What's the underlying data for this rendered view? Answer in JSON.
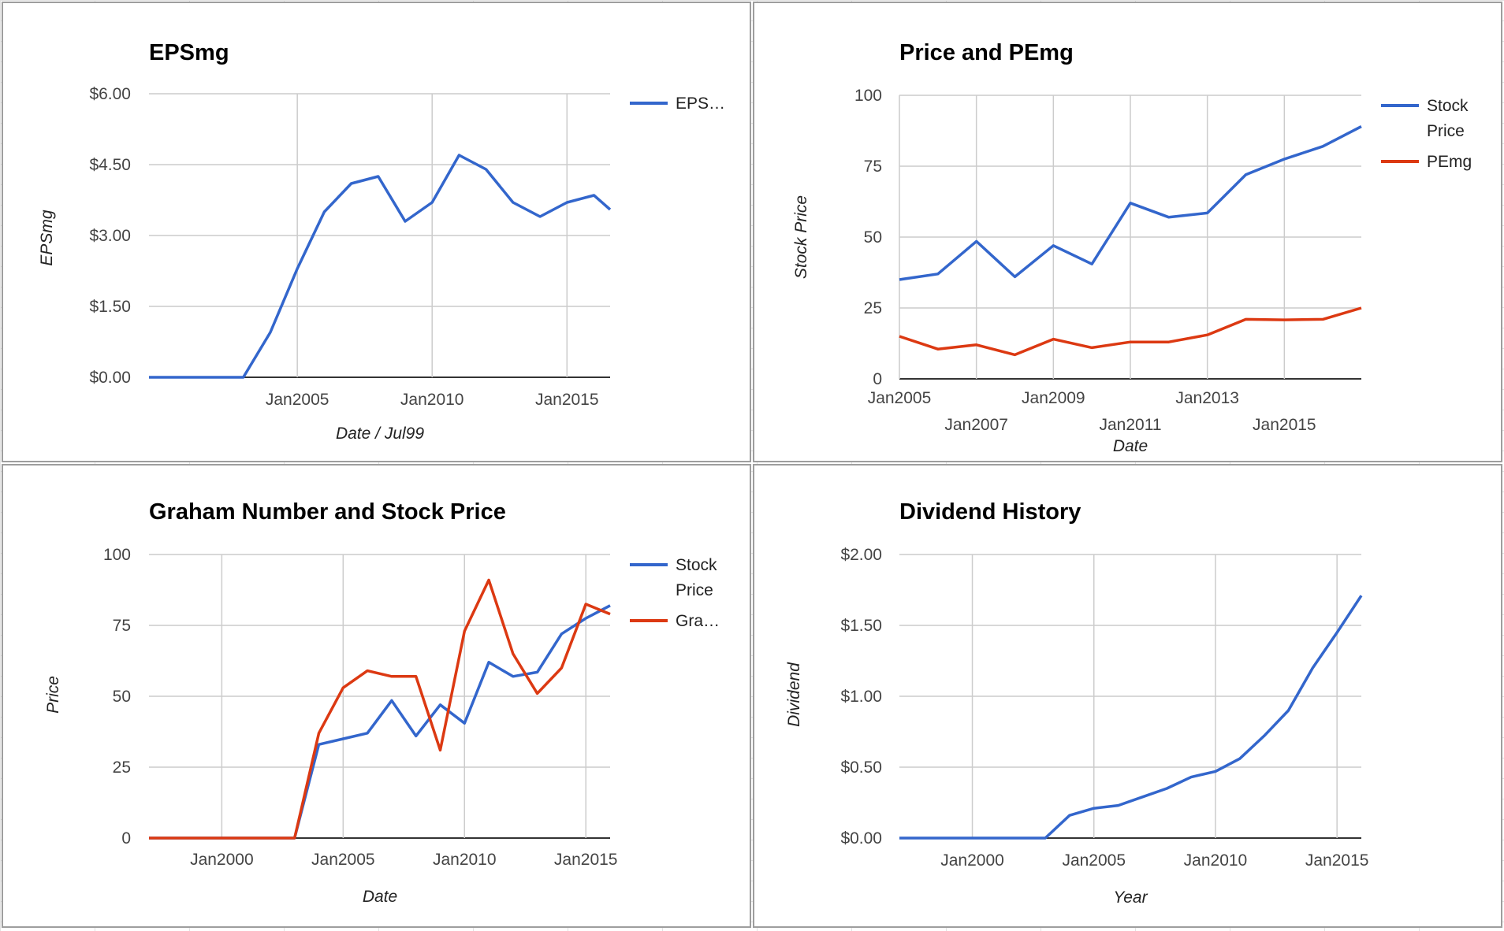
{
  "charts": [
    {
      "title": "EPSmg",
      "chart_data": {
        "type": "line",
        "title": "EPSmg",
        "xlabel": "Date / Jul99",
        "ylabel": "EPSmg",
        "xlim": [
          1999.5,
          2016.6
        ],
        "ylim": [
          0,
          6
        ],
        "yticks": [
          0,
          1.5,
          3,
          4.5,
          6
        ],
        "ytick_labels": [
          "$0.00",
          "$1.50",
          "$3.00",
          "$4.50",
          "$6.00"
        ],
        "xticks": [
          2005,
          2010,
          2015
        ],
        "xtick_labels": [
          "Jan2005",
          "Jan2010",
          "Jan2015"
        ],
        "x": [
          1999.5,
          2001.0,
          2002.0,
          2003.0,
          2004.0,
          2005.0,
          2006.0,
          2007.0,
          2008.0,
          2009.0,
          2010.0,
          2011.0,
          2012.0,
          2013.0,
          2014.0,
          2015.0,
          2016.0,
          2016.6
        ],
        "series": [
          {
            "name": "EPSmg",
            "color": "#3366cc",
            "values": [
              0,
              0,
              0,
              0,
              0.95,
              2.3,
              3.5,
              4.1,
              4.25,
              3.3,
              3.7,
              4.7,
              4.4,
              3.7,
              3.4,
              3.7,
              3.85,
              3.55
            ]
          }
        ],
        "grid": true,
        "legend": "right"
      },
      "legend_labels": [
        "EPS…"
      ]
    },
    {
      "title": "Price and PEmg",
      "chart_data": {
        "type": "line",
        "title": "Price and PEmg",
        "xlabel": "Date",
        "ylabel": "Stock Price",
        "xlim": [
          2005.0,
          2017.0
        ],
        "ylim": [
          0,
          100
        ],
        "yticks": [
          0,
          25,
          50,
          75,
          100
        ],
        "ytick_labels": [
          "0",
          "25",
          "50",
          "75",
          "100"
        ],
        "xticks": [
          2005,
          2007,
          2009,
          2011,
          2013,
          2015
        ],
        "xtick_labels": [
          "Jan2005",
          "Jan2007",
          "Jan2009",
          "Jan2011",
          "Jan2013",
          "Jan2015"
        ],
        "x": [
          2005.0,
          2006.0,
          2007.0,
          2008.0,
          2009.0,
          2010.0,
          2011.0,
          2012.0,
          2013.0,
          2014.0,
          2015.0,
          2016.0,
          2017.0
        ],
        "series": [
          {
            "name": "Stock Price",
            "color": "#3366cc",
            "values": [
              35,
              37,
              48.5,
              36,
              47,
              40.5,
              62,
              57,
              58.5,
              72,
              77.5,
              82,
              89
            ]
          },
          {
            "name": "PEmg",
            "color": "#dc3912",
            "values": [
              15,
              10.5,
              12,
              8.5,
              14,
              11,
              13,
              13,
              15.5,
              21,
              20.8,
              21,
              25
            ]
          }
        ],
        "grid": true,
        "legend": "right"
      },
      "legend_labels": [
        "Stock Price",
        "PEmg"
      ]
    },
    {
      "title": "Graham Number and Stock Price",
      "chart_data": {
        "type": "line",
        "title": "Graham Number and Stock Price",
        "xlabel": "Date",
        "ylabel": "Price",
        "xlim": [
          1997.0,
          2016.0
        ],
        "ylim": [
          0,
          100
        ],
        "yticks": [
          0,
          25,
          50,
          75,
          100
        ],
        "ytick_labels": [
          "0",
          "25",
          "50",
          "75",
          "100"
        ],
        "xticks": [
          2000,
          2005,
          2010,
          2015
        ],
        "xtick_labels": [
          "Jan2000",
          "Jan2005",
          "Jan2010",
          "Jan2015"
        ],
        "x": [
          1997.0,
          1998.0,
          1999.0,
          2000.0,
          2001.0,
          2002.0,
          2003.0,
          2004.0,
          2005.0,
          2006.0,
          2007.0,
          2008.0,
          2009.0,
          2010.0,
          2011.0,
          2012.0,
          2013.0,
          2014.0,
          2015.0,
          2016.0
        ],
        "series": [
          {
            "name": "Stock Price",
            "color": "#3366cc",
            "values": [
              0,
              0,
              0,
              0,
              0,
              0,
              0,
              33,
              35,
              37,
              48.5,
              36,
              47,
              40.5,
              62,
              57,
              58.5,
              72,
              77.5,
              82
            ]
          },
          {
            "name": "Gra…",
            "color": "#dc3912",
            "values": [
              0,
              0,
              0,
              0,
              0,
              0,
              0,
              37,
              53,
              59,
              57,
              57,
              31,
              73,
              91,
              65,
              51,
              60,
              82.5,
              79
            ]
          }
        ],
        "grid": true,
        "legend": "right"
      },
      "legend_labels": [
        "Stock Price",
        "Gra…"
      ]
    },
    {
      "title": "Dividend History",
      "chart_data": {
        "type": "line",
        "title": "Dividend History",
        "xlabel": "Year",
        "ylabel": "Dividend",
        "xlim": [
          1997.0,
          2016.0
        ],
        "ylim": [
          0,
          2
        ],
        "yticks": [
          0,
          0.5,
          1,
          1.5,
          2
        ],
        "ytick_labels": [
          "$0.00",
          "$0.50",
          "$1.00",
          "$1.50",
          "$2.00"
        ],
        "xticks": [
          2000,
          2005,
          2010,
          2015
        ],
        "xtick_labels": [
          "Jan2000",
          "Jan2005",
          "Jan2010",
          "Jan2015"
        ],
        "x": [
          1997.0,
          1998.0,
          1999.0,
          2000.0,
          2001.0,
          2002.0,
          2003.0,
          2004.0,
          2005.0,
          2006.0,
          2007.0,
          2008.0,
          2009.0,
          2010.0,
          2011.0,
          2012.0,
          2013.0,
          2014.0,
          2015.0,
          2016.0
        ],
        "series": [
          {
            "name": "Dividend",
            "color": "#3366cc",
            "values": [
              0,
              0,
              0,
              0,
              0,
              0,
              0,
              0.16,
              0.21,
              0.23,
              0.29,
              0.35,
              0.43,
              0.47,
              0.56,
              0.72,
              0.9,
              1.2,
              1.45,
              1.71
            ]
          }
        ],
        "grid": true,
        "legend": "none"
      },
      "legend_labels": []
    }
  ]
}
